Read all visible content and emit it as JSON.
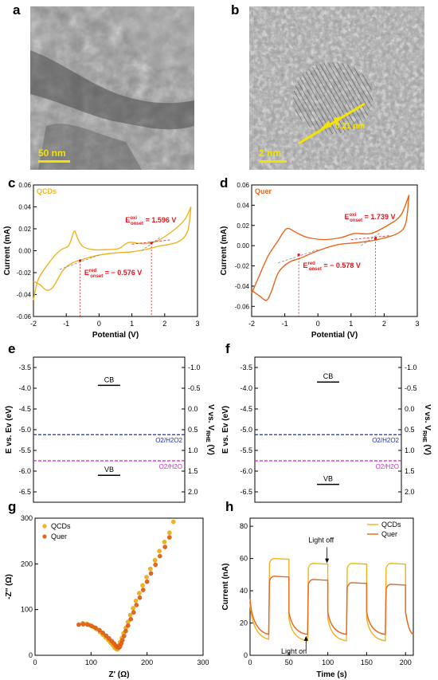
{
  "panel_labels": {
    "a": "a",
    "b": "b",
    "c": "c",
    "d": "d",
    "e": "e",
    "f": "f",
    "g": "g",
    "h": "h"
  },
  "panel_a": {
    "scale_bar": "50 nm"
  },
  "panel_b": {
    "scale_bar": "2 nm",
    "lattice_label": "0.21 nm"
  },
  "colors": {
    "qcds": "#F2B21C",
    "quer": "#E8651A",
    "onset_text": "#E8121B",
    "o2h2o2": "#1F2EC0",
    "o2h2o": "#D81BD8"
  },
  "chart_data": [
    {
      "id": "c",
      "type": "line",
      "legend": "QCDs",
      "xlabel": "Potential (V)",
      "ylabel": "Current (mA)",
      "xlim": [
        -2,
        3
      ],
      "ylim": [
        -0.06,
        0.06
      ],
      "xticks": [
        "-2",
        "-1",
        "0",
        "1",
        "2",
        "3"
      ],
      "yticks": [
        "-0.06",
        "-0.04",
        "-0.02",
        "0.00",
        "0.02",
        "0.04",
        "0.06"
      ],
      "annotations": {
        "oxi_prefix": "E",
        "oxi_sup": "oxi",
        "oxi_sub": "onset",
        "oxi_value": " = 1.596 V",
        "red_prefix": "E",
        "red_sup": "red",
        "red_sub": "onset",
        "red_value": " = − 0.576 V"
      },
      "onsets": {
        "oxi": 1.596,
        "red": -0.576
      },
      "upper": [
        [
          -2,
          -0.045
        ],
        [
          -1.85,
          -0.026
        ],
        [
          -1.5,
          -0.01
        ],
        [
          -1.2,
          0.0
        ],
        [
          -0.95,
          0.004
        ],
        [
          -0.85,
          0.01
        ],
        [
          -0.75,
          0.018
        ],
        [
          -0.65,
          0.011
        ],
        [
          -0.5,
          0.004
        ],
        [
          -0.2,
          0.001
        ],
        [
          0.2,
          0.001
        ],
        [
          0.6,
          0.002
        ],
        [
          0.9,
          0.0075
        ],
        [
          1.3,
          0.0065
        ],
        [
          1.7,
          0.008
        ],
        [
          2.2,
          0.017
        ],
        [
          2.6,
          0.028
        ],
        [
          2.8,
          0.04
        ]
      ],
      "lower": [
        [
          2.8,
          0.04
        ],
        [
          2.7,
          0.018
        ],
        [
          2.4,
          0.008
        ],
        [
          1.8,
          0.004
        ],
        [
          1.4,
          0.001
        ],
        [
          1.0,
          -0.001
        ],
        [
          0.5,
          -0.002
        ],
        [
          0.0,
          -0.004
        ],
        [
          -0.4,
          -0.007
        ],
        [
          -0.8,
          -0.011
        ],
        [
          -1.1,
          -0.018
        ],
        [
          -1.4,
          -0.033
        ],
        [
          -1.6,
          -0.036
        ],
        [
          -1.8,
          -0.031
        ],
        [
          -2,
          -0.028
        ]
      ]
    },
    {
      "id": "d",
      "type": "line",
      "legend": "Quer",
      "xlabel": "Potential (V)",
      "ylabel": "Current (mA)",
      "xlim": [
        -2,
        3
      ],
      "ylim": [
        -0.07,
        0.06
      ],
      "xticks": [
        "-2",
        "-1",
        "0",
        "1",
        "2",
        "3"
      ],
      "yticks": [
        "-0.06",
        "-0.04",
        "-0.02",
        "0.00",
        "0.02",
        "0.04",
        "0.06"
      ],
      "annotations": {
        "oxi_prefix": "E",
        "oxi_sup": "oxi",
        "oxi_sub": "onset",
        "oxi_value": " = 1.739 V",
        "red_prefix": "E",
        "red_sup": "red",
        "red_sub": "onset",
        "red_value": " = − 0.578 V"
      },
      "onsets": {
        "oxi": 1.739,
        "red": -0.578
      },
      "upper": [
        [
          -2,
          -0.047
        ],
        [
          -1.8,
          -0.032
        ],
        [
          -1.5,
          -0.01
        ],
        [
          -1.2,
          0.005
        ],
        [
          -1.05,
          0.013
        ],
        [
          -0.9,
          0.017
        ],
        [
          -0.6,
          0.012
        ],
        [
          -0.3,
          0.008
        ],
        [
          0.2,
          0.006
        ],
        [
          0.7,
          0.008
        ],
        [
          1.1,
          0.012
        ],
        [
          1.6,
          0.012
        ],
        [
          2.1,
          0.02
        ],
        [
          2.5,
          0.03
        ],
        [
          2.75,
          0.05
        ]
      ],
      "lower": [
        [
          2.75,
          0.05
        ],
        [
          2.65,
          0.022
        ],
        [
          2.4,
          0.012
        ],
        [
          1.8,
          0.006
        ],
        [
          1.2,
          0.003
        ],
        [
          0.6,
          0.001
        ],
        [
          0.0,
          -0.005
        ],
        [
          -0.5,
          -0.012
        ],
        [
          -0.9,
          -0.017
        ],
        [
          -1.2,
          -0.027
        ],
        [
          -1.4,
          -0.045
        ],
        [
          -1.55,
          -0.054
        ],
        [
          -1.75,
          -0.05
        ],
        [
          -2,
          -0.044
        ]
      ]
    },
    {
      "id": "e",
      "type": "band",
      "ylabel_left": "E vs. Ev (eV)",
      "ylabel_right_main": "V vs. V",
      "ylabel_right_sub": "RHE",
      "ylabel_right_end": " (V)",
      "left_ylim": [
        -6.75,
        -3.25
      ],
      "left_ticks": [
        "-3.5",
        "-4.0",
        "-4.5",
        "-5.0",
        "-5.5",
        "-6.0",
        "-6.5"
      ],
      "right_ticks": [
        "1.0",
        "0.5",
        "0.0",
        "-0.5",
        "-1.0",
        "-1.5",
        "-2.0"
      ],
      "right_tick_labels": [
        "-1.0",
        "-0.5",
        "0.0",
        "0.5",
        "1.0",
        "1.5",
        "2.0"
      ],
      "cb_label": "CB",
      "vb_label": "VB",
      "cb": -3.93,
      "vb": -6.1,
      "o2h2o2_label": "O2/H2O2",
      "o2h2o_label": "O2/H2O",
      "o2h2o2": -5.12,
      "o2h2o": -5.75
    },
    {
      "id": "f",
      "type": "band",
      "ylabel_left": "E vs. Ev (eV)",
      "ylabel_right_main": "V vs. V",
      "ylabel_right_sub": "RHE",
      "ylabel_right_end": " (V)",
      "left_ylim": [
        -6.75,
        -3.25
      ],
      "left_ticks": [
        "-3.5",
        "-4.0",
        "-4.5",
        "-5.0",
        "-5.5",
        "-6.0",
        "-6.5"
      ],
      "right_ticks": [
        "1.0",
        "0.5",
        "0.0",
        "-0.5",
        "-1.0",
        "-1.5",
        "-2.0"
      ],
      "right_tick_labels": [
        "-1.0",
        "-0.5",
        "0.0",
        "0.5",
        "1.0",
        "1.5",
        "2.0"
      ],
      "cb_label": "CB",
      "vb_label": "VB",
      "cb": -3.85,
      "vb": -6.32,
      "o2h2o2_label": "O2/H2O2",
      "o2h2o_label": "O2/H2O",
      "o2h2o2": -5.12,
      "o2h2o": -5.75
    },
    {
      "id": "g",
      "type": "scatter",
      "xlabel": "Z' (Ω)",
      "ylabel": "-Z'' (Ω)",
      "xlim": [
        0,
        300
      ],
      "ylim": [
        0,
        300
      ],
      "xticks": [
        "0",
        "100",
        "200",
        "300"
      ],
      "yticks": [
        "0",
        "100",
        "200",
        "300"
      ],
      "series": [
        {
          "name": "QCDs",
          "x": [
            85,
            92,
            98,
            104,
            110,
            116,
            121,
            126,
            131,
            135,
            139,
            142,
            145,
            147,
            148,
            149,
            150,
            152,
            155,
            158,
            162,
            166,
            170,
            175,
            180,
            186,
            192,
            199,
            206,
            214,
            222,
            231,
            240,
            247
          ],
          "y": [
            70,
            69,
            66,
            62,
            57,
            51,
            45,
            39,
            33,
            27,
            22,
            17,
            14,
            13,
            14,
            17,
            22,
            29,
            38,
            48,
            60,
            73,
            88,
            103,
            119,
            136,
            153,
            171,
            189,
            208,
            228,
            248,
            268,
            292
          ]
        },
        {
          "name": "Quer",
          "x": [
            78,
            86,
            94,
            101,
            108,
            115,
            121,
            127,
            132,
            137,
            141,
            144,
            147,
            149,
            151,
            152,
            154,
            156,
            159,
            162,
            166,
            171,
            176,
            181,
            187,
            193,
            200,
            207,
            215,
            223,
            232,
            240
          ],
          "y": [
            67,
            68,
            67,
            64,
            60,
            55,
            49,
            43,
            37,
            31,
            26,
            21,
            18,
            17,
            18,
            21,
            26,
            33,
            42,
            53,
            65,
            79,
            94,
            110,
            126,
            143,
            161,
            179,
            198,
            217,
            237,
            258
          ]
        }
      ]
    },
    {
      "id": "h",
      "type": "line",
      "xlabel": "Time (s)",
      "ylabel": "Current (nA)",
      "xlim": [
        0,
        210
      ],
      "ylim": [
        0,
        85
      ],
      "xticks": [
        "0",
        "50",
        "100",
        "150",
        "200"
      ],
      "yticks": [
        "0",
        "20",
        "40",
        "60",
        "80"
      ],
      "light_off_label": "Light off",
      "light_on_label": "Light on",
      "series": [
        {
          "name": "QCDs",
          "on": [
            [
              25,
              60
            ],
            [
              75,
              57
            ],
            [
              125,
              57
            ],
            [
              175,
              57
            ]
          ],
          "off_low": [
            10,
            9,
            9,
            9,
            13
          ]
        },
        {
          "name": "Quer",
          "on": [
            [
              25,
              49
            ],
            [
              75,
              47
            ],
            [
              125,
              45
            ],
            [
              175,
              44
            ]
          ],
          "off_low": [
            13,
            13,
            13,
            13,
            13
          ]
        }
      ]
    }
  ]
}
